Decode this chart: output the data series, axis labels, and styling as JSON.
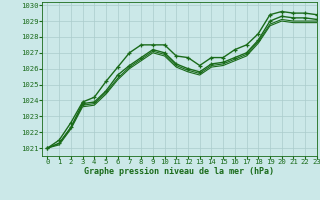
{
  "title": "Graphe pression niveau de la mer (hPa)",
  "bg_color": "#cbe8e8",
  "grid_color": "#aacccc",
  "line_color": "#1a6b1a",
  "xlim": [
    -0.5,
    23
  ],
  "ylim": [
    1020.5,
    1030.2
  ],
  "xticks": [
    0,
    1,
    2,
    3,
    4,
    5,
    6,
    7,
    8,
    9,
    10,
    11,
    12,
    13,
    14,
    15,
    16,
    17,
    18,
    19,
    20,
    21,
    22,
    23
  ],
  "yticks": [
    1021,
    1022,
    1023,
    1024,
    1025,
    1026,
    1027,
    1028,
    1029,
    1030
  ],
  "series": [
    {
      "y": [
        1021.0,
        1021.5,
        1022.6,
        1023.9,
        1024.2,
        1025.2,
        1026.1,
        1027.0,
        1027.5,
        1027.5,
        1027.5,
        1026.8,
        1026.7,
        1026.2,
        1026.7,
        1026.7,
        1027.2,
        1027.5,
        1028.2,
        1029.4,
        1029.6,
        1029.5,
        1029.5,
        1029.4
      ],
      "marker": true,
      "lw": 1.0
    },
    {
      "y": [
        1021.0,
        1021.3,
        1022.3,
        1023.8,
        1023.9,
        1024.6,
        1025.6,
        1026.2,
        1026.7,
        1027.2,
        1027.0,
        1026.3,
        1026.0,
        1025.8,
        1026.3,
        1026.4,
        1026.7,
        1027.0,
        1027.8,
        1029.0,
        1029.3,
        1029.2,
        1029.2,
        1029.1
      ],
      "marker": true,
      "lw": 1.0
    },
    {
      "y": [
        1021.0,
        1021.3,
        1022.3,
        1023.7,
        1023.8,
        1024.5,
        1025.4,
        1026.1,
        1026.6,
        1027.1,
        1026.9,
        1026.2,
        1025.9,
        1025.7,
        1026.2,
        1026.3,
        1026.6,
        1026.9,
        1027.7,
        1028.8,
        1029.1,
        1029.0,
        1029.0,
        1029.0
      ],
      "marker": false,
      "lw": 0.8
    },
    {
      "y": [
        1021.0,
        1021.2,
        1022.2,
        1023.6,
        1023.7,
        1024.4,
        1025.3,
        1026.0,
        1026.5,
        1027.0,
        1026.8,
        1026.1,
        1025.8,
        1025.6,
        1026.1,
        1026.2,
        1026.5,
        1026.8,
        1027.6,
        1028.7,
        1029.0,
        1028.9,
        1028.9,
        1028.9
      ],
      "marker": false,
      "lw": 0.8
    }
  ],
  "x_values": [
    0,
    1,
    2,
    3,
    4,
    5,
    6,
    7,
    8,
    9,
    10,
    11,
    12,
    13,
    14,
    15,
    16,
    17,
    18,
    19,
    20,
    21,
    22,
    23
  ],
  "xlabel_fontsize": 6.0,
  "tick_fontsize": 5.2
}
